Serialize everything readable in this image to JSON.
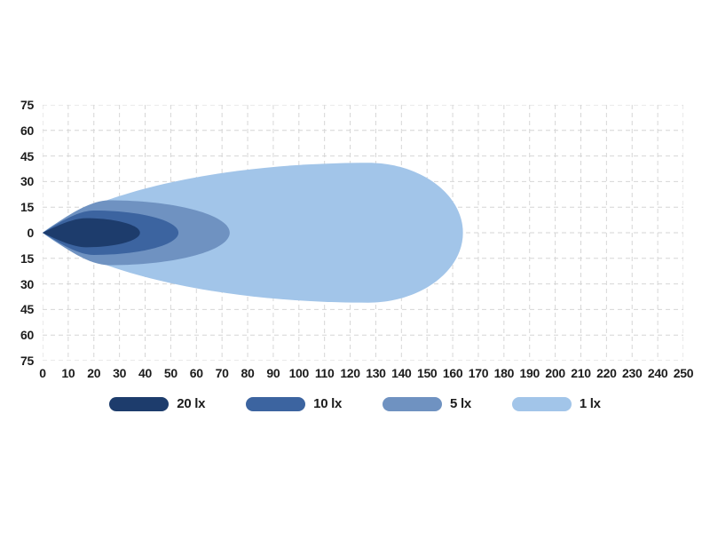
{
  "chart_data": {
    "type": "area",
    "title": "",
    "subtitle": "",
    "xlabel": "",
    "ylabel": "",
    "description": "Lamp beam light distribution diagram with nested lux isoline lobes",
    "xlim": [
      0,
      250
    ],
    "ylim": [
      -75,
      75
    ],
    "x_ticks": [
      0,
      10,
      20,
      30,
      40,
      50,
      60,
      70,
      80,
      90,
      100,
      110,
      120,
      130,
      140,
      150,
      160,
      170,
      180,
      190,
      200,
      210,
      220,
      230,
      240,
      250
    ],
    "y_ticks": [
      "75",
      "60",
      "45",
      "30",
      "15",
      "0",
      "15",
      "30",
      "45",
      "60",
      "75"
    ],
    "y_tick_values": [
      75,
      60,
      45,
      30,
      15,
      0,
      -15,
      -30,
      -45,
      -60,
      -75
    ],
    "grid": {
      "show": true,
      "style": "dashed",
      "color": "#d6d6d6",
      "x_step": 10,
      "y_step": 15
    },
    "axis_text_color": "#1c1c1c",
    "legend_position": "bottom",
    "series": [
      {
        "label": "1 lx",
        "lux": 1,
        "color": "#a2c5e9",
        "x_end": 164,
        "max_half_width": 41,
        "x_at_max_width": 127,
        "tip": {
          "k1x": 0.12,
          "k1y": 0.46,
          "k2x": 0.48
        }
      },
      {
        "label": "5 lx",
        "lux": 5,
        "color": "#6f92c1",
        "x_end": 73,
        "max_half_width": 19,
        "x_at_max_width": 26,
        "tip": {
          "k1x": 0.35,
          "k1y": 0.5,
          "k2x": 0.7
        }
      },
      {
        "label": "10 lx",
        "lux": 10,
        "color": "#3c64a0",
        "x_end": 53,
        "max_half_width": 13,
        "x_at_max_width": 20,
        "tip": {
          "k1x": 0.35,
          "k1y": 0.5,
          "k2x": 0.7
        }
      },
      {
        "label": "20 lx",
        "lux": 20,
        "color": "#1d3c6c",
        "x_end": 38,
        "max_half_width": 8.5,
        "x_at_max_width": 17,
        "tip": {
          "k1x": 0.35,
          "k1y": 0.5,
          "k2x": 0.7
        }
      }
    ],
    "legend": [
      {
        "label": "20 lx",
        "color": "#1d3c6c"
      },
      {
        "label": "10 lx",
        "color": "#3c64a0"
      },
      {
        "label": "5 lx",
        "color": "#6f92c1"
      },
      {
        "label": "1 lx",
        "color": "#a2c5e9"
      }
    ]
  }
}
